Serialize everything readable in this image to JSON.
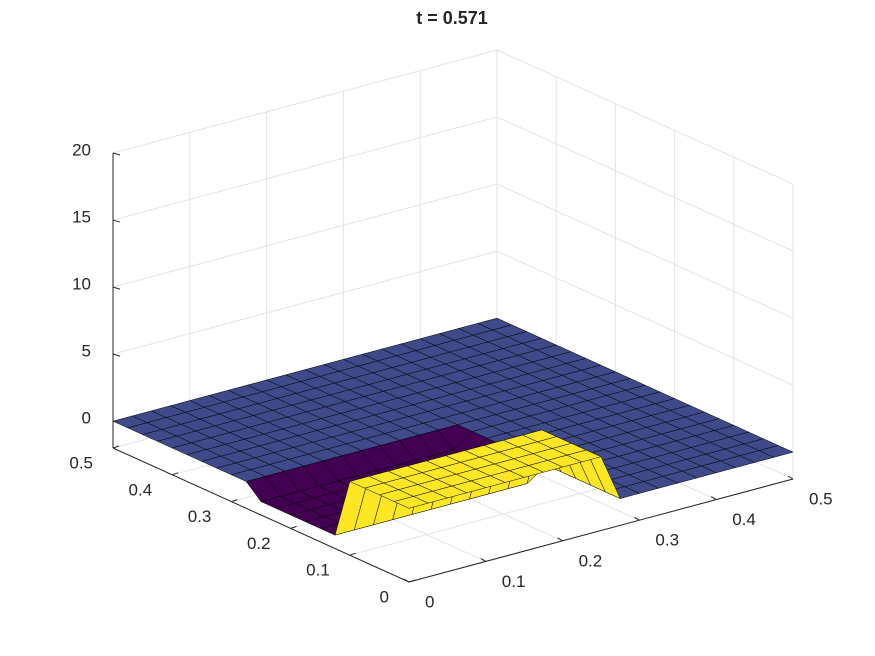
{
  "chart_data": {
    "type": "surface3d",
    "title": "t = 0.571",
    "x": [
      0,
      0.025,
      0.05,
      0.075,
      0.1,
      0.125,
      0.15,
      0.175,
      0.2,
      0.225,
      0.25,
      0.275,
      0.3,
      0.325,
      0.35,
      0.375,
      0.4,
      0.425,
      0.45,
      0.475,
      0.5
    ],
    "y": [
      0,
      0.025,
      0.05,
      0.075,
      0.1,
      0.125,
      0.15,
      0.175,
      0.2,
      0.225,
      0.25,
      0.275,
      0.3,
      0.325,
      0.35,
      0.375,
      0.4,
      0.425,
      0.45,
      0.475,
      0.5
    ],
    "z": [
      [
        3.5,
        3.5,
        3.5,
        3.5,
        3.5,
        3.5,
        3.5,
        3.5,
        3.5,
        3.5,
        3.5,
        0,
        0,
        0,
        0,
        0,
        0,
        0,
        0,
        0,
        0
      ],
      [
        3.5,
        3.5,
        3.5,
        3.5,
        3.5,
        3.5,
        3.5,
        3.5,
        3.5,
        3.5,
        3.5,
        0,
        0,
        0,
        0,
        0,
        0,
        0,
        0,
        0,
        0
      ],
      [
        3.5,
        3.5,
        3.5,
        3.5,
        3.5,
        3.5,
        3.5,
        3.5,
        3.5,
        3.5,
        3.5,
        0,
        0,
        0,
        0,
        0,
        0,
        0,
        0,
        0,
        0
      ],
      [
        3.5,
        3.5,
        3.5,
        3.5,
        3.5,
        3.5,
        3.5,
        3.5,
        3.5,
        3.5,
        3.5,
        0,
        0,
        0,
        0,
        0,
        0,
        0,
        0,
        0,
        0
      ],
      [
        3.5,
        3.5,
        3.5,
        3.5,
        3.5,
        3.5,
        3.5,
        3.5,
        3.5,
        3.5,
        3.5,
        0,
        0,
        0,
        0,
        0,
        0,
        0,
        0,
        0,
        0
      ],
      [
        -1,
        -1,
        -1,
        -1,
        -1,
        -1,
        -1,
        -1,
        -1,
        -1,
        -1,
        0,
        0,
        0,
        0,
        0,
        0,
        0,
        0,
        0,
        0
      ],
      [
        -1,
        -1,
        -1,
        -1,
        -1,
        -1,
        -1,
        -1,
        -1,
        -1,
        -1,
        0,
        0,
        0,
        0,
        0,
        0,
        0,
        0,
        0,
        0
      ],
      [
        -1,
        -1,
        -1,
        -1,
        -1,
        -1,
        -1,
        -1,
        -1,
        -1,
        -1,
        0,
        0,
        0,
        0,
        0,
        0,
        0,
        0,
        0,
        0
      ],
      [
        -1,
        -1,
        -1,
        -1,
        -1,
        -1,
        -1,
        -1,
        -1,
        -1,
        -1,
        0,
        0,
        0,
        0,
        0,
        0,
        0,
        0,
        0,
        0
      ],
      [
        -1,
        -1,
        -1,
        -1,
        -1,
        -1,
        -1,
        -1,
        -1,
        -1,
        -1,
        0,
        0,
        0,
        0,
        0,
        0,
        0,
        0,
        0,
        0
      ],
      [
        -1,
        -1,
        -1,
        -1,
        -1,
        -1,
        -1,
        -1,
        -1,
        -1,
        -1,
        0,
        0,
        0,
        0,
        0,
        0,
        0,
        0,
        0,
        0
      ],
      [
        0,
        0,
        0,
        0,
        0,
        0,
        0,
        0,
        0,
        0,
        0,
        0,
        0,
        0,
        0,
        0,
        0,
        0,
        0,
        0,
        0
      ],
      [
        0,
        0,
        0,
        0,
        0,
        0,
        0,
        0,
        0,
        0,
        0,
        0,
        0,
        0,
        0,
        0,
        0,
        0,
        0,
        0,
        0
      ],
      [
        0,
        0,
        0,
        0,
        0,
        0,
        0,
        0,
        0,
        0,
        0,
        0,
        0,
        0,
        0,
        0,
        0,
        0,
        0,
        0,
        0
      ],
      [
        0,
        0,
        0,
        0,
        0,
        0,
        0,
        0,
        0,
        0,
        0,
        0,
        0,
        0,
        0,
        0,
        0,
        0,
        0,
        0,
        0
      ],
      [
        0,
        0,
        0,
        0,
        0,
        0,
        0,
        0,
        0,
        0,
        0,
        0,
        0,
        0,
        0,
        0,
        0,
        0,
        0,
        0,
        0
      ],
      [
        0,
        0,
        0,
        0,
        0,
        0,
        0,
        0,
        0,
        0,
        0,
        0,
        0,
        0,
        0,
        0,
        0,
        0,
        0,
        0,
        0
      ],
      [
        0,
        0,
        0,
        0,
        0,
        0,
        0,
        0,
        0,
        0,
        0,
        0,
        0,
        0,
        0,
        0,
        0,
        0,
        0,
        0,
        0
      ],
      [
        0,
        0,
        0,
        0,
        0,
        0,
        0,
        0,
        0,
        0,
        0,
        0,
        0,
        0,
        0,
        0,
        0,
        0,
        0,
        0,
        0
      ],
      [
        0,
        0,
        0,
        0,
        0,
        0,
        0,
        0,
        0,
        0,
        0,
        0,
        0,
        0,
        0,
        0,
        0,
        0,
        0,
        0,
        0
      ],
      [
        0,
        0,
        0,
        0,
        0,
        0,
        0,
        0,
        0,
        0,
        0,
        0,
        0,
        0,
        0,
        0,
        0,
        0,
        0,
        0,
        0
      ]
    ],
    "colormap": "viridis",
    "xlim": [
      0,
      0.5
    ],
    "ylim": [
      0,
      0.5
    ],
    "zlim": [
      -2,
      20
    ],
    "xticks": [
      0,
      0.1,
      0.2,
      0.3,
      0.4,
      0.5
    ],
    "yticks": [
      0,
      0.1,
      0.2,
      0.3,
      0.4,
      0.5
    ],
    "zticks": [
      0,
      5,
      10,
      15,
      20
    ],
    "grid": true
  }
}
